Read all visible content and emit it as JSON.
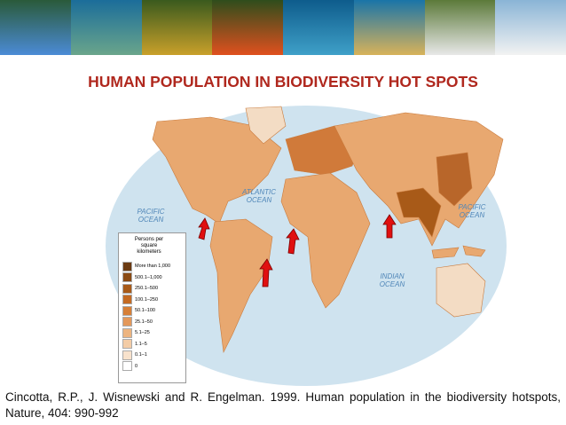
{
  "title": "HUMAN POPULATION IN BIODIVERSITY HOT SPOTS",
  "map": {
    "ocean_labels": [
      "PACIFIC OCEAN",
      "ATLANTIC OCEAN",
      "INDIAN OCEAN",
      "PACIFIC OCEAN"
    ],
    "legend": {
      "title": "Persons per square kilometers",
      "entries": [
        {
          "label": "More than 1,000",
          "color": "#6b3a12"
        },
        {
          "label": "500.1–1,000",
          "color": "#8a4a14"
        },
        {
          "label": "250.1–500",
          "color": "#a85a18"
        },
        {
          "label": "100.1–250",
          "color": "#c46a22"
        },
        {
          "label": "50.1–100",
          "color": "#d67f36"
        },
        {
          "label": "25.1–50",
          "color": "#e3985a"
        },
        {
          "label": "5.1–25",
          "color": "#ecb480"
        },
        {
          "label": "1.1–5",
          "color": "#f3cca6"
        },
        {
          "label": "0.1–1",
          "color": "#f8e2cc"
        },
        {
          "label": "0",
          "color": "#ffffff"
        }
      ]
    }
  },
  "citation": "Cincotta, R.P., J. Wisnewski and R. Engelman. 1999. Human population in the biodiversity hotspots, Nature, 404: 990-992"
}
